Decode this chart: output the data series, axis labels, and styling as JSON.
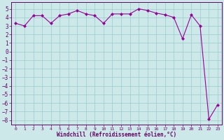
{
  "x": [
    0,
    1,
    2,
    3,
    4,
    5,
    6,
    7,
    8,
    9,
    10,
    11,
    12,
    13,
    14,
    15,
    16,
    17,
    18,
    19,
    20,
    21,
    22,
    23
  ],
  "y": [
    3.3,
    3.0,
    4.2,
    4.2,
    3.3,
    4.2,
    4.4,
    4.8,
    4.4,
    4.2,
    3.3,
    4.4,
    4.4,
    4.4,
    5.0,
    4.8,
    4.5,
    4.3,
    4.0,
    1.5,
    4.3,
    3.0,
    -7.9,
    -6.2
  ],
  "line_color": "#990099",
  "marker": "D",
  "marker_size": 2.0,
  "bg_color": "#cce8e8",
  "grid_color": "#99cccc",
  "xlabel": "Windchill (Refroidissement éolien,°C)",
  "xlabel_color": "#660066",
  "tick_color": "#660066",
  "ylim": [
    -8.5,
    5.8
  ],
  "yticks": [
    5,
    4,
    3,
    2,
    1,
    0,
    -1,
    -2,
    -3,
    -4,
    -5,
    -6,
    -7,
    -8
  ],
  "xticks": [
    0,
    1,
    2,
    3,
    4,
    5,
    6,
    7,
    8,
    9,
    10,
    11,
    12,
    13,
    14,
    15,
    16,
    17,
    18,
    19,
    20,
    21,
    22,
    23
  ],
  "spine_color": "#660066",
  "xlim": [
    -0.5,
    23.5
  ]
}
